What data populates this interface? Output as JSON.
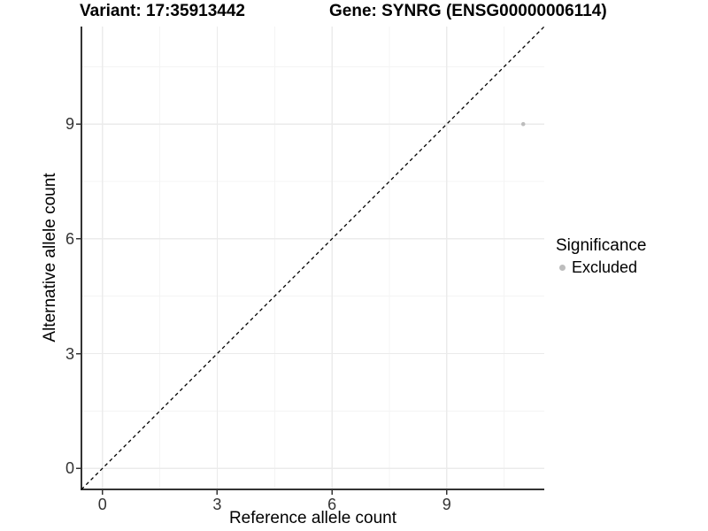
{
  "chart_data": {
    "type": "scatter",
    "title_left": "Variant: 17:35913442",
    "title_right": "Gene: SYNRG (ENSG00000006114)",
    "xlabel": "Reference allele count",
    "ylabel": "Alternative allele count",
    "xlim": [
      -0.55,
      11.55
    ],
    "ylim": [
      -0.55,
      11.55
    ],
    "x_ticks": [
      0,
      3,
      6,
      9
    ],
    "y_ticks": [
      0,
      3,
      6,
      9
    ],
    "x_minor_ticks": [
      1.5,
      4.5,
      7.5,
      10.5
    ],
    "y_minor_ticks": [
      1.5,
      4.5,
      7.5,
      10.5
    ],
    "grid": true,
    "identity_line": {
      "style": "dashed",
      "color": "#000000",
      "from": -0.55,
      "to": 11.55
    },
    "series": [
      {
        "name": "Excluded",
        "color": "#bdbdbd",
        "point_radius": 2.3,
        "points": [
          {
            "x": 11,
            "y": 9
          }
        ]
      }
    ],
    "legend": {
      "position": "right",
      "title": "Significance",
      "entries": [
        {
          "label": "Excluded",
          "color": "#bdbdbd"
        }
      ]
    },
    "colors": {
      "grid_major": "#ebebeb",
      "grid_minor": "#f4f4f4",
      "axis_line": "#333333",
      "tick_text": "#333333"
    }
  }
}
